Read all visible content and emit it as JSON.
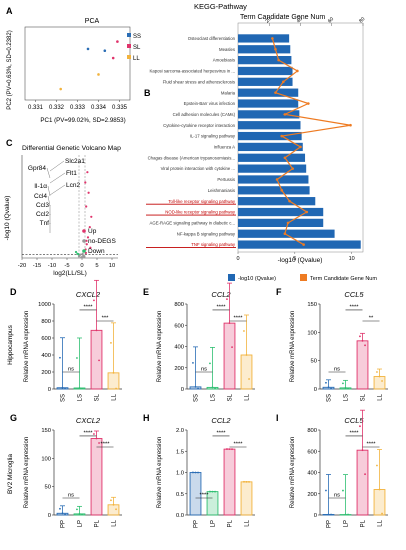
{
  "colors": {
    "SS": "#2a6db5",
    "SL": "#e0336b",
    "LL": "#f2b33d",
    "LS": "#2fbf71",
    "PP": "#2a6db5",
    "LP": "#2fbf71",
    "PL": "#e0336b",
    "kegg_bar": "#2067b3",
    "kegg_line": "#ee7b22",
    "highlight": "#c00000",
    "up": "#e0336b",
    "nodegs": "#999999",
    "down": "#2fbf71"
  },
  "panels": {
    "A": {
      "letter": "A",
      "title": "PCA",
      "xlabel": "PC1 (PV=99.02%, SD=2.9853)",
      "ylabel": "PC2 (PV=0.63%, SD=0.2382)",
      "xticks": [
        "0.331",
        "0.332",
        "0.333",
        "0.334",
        "0.335"
      ],
      "legend": [
        "SS",
        "SL",
        "LL"
      ]
    },
    "B": {
      "letter": "B",
      "title": "KEGG-Pathway",
      "top_axis_title": "Term Candidate Gene Num",
      "top_ticks": [
        "20",
        "40",
        "60",
        "80"
      ],
      "bottom_ticks": [
        "0",
        "5",
        "10"
      ],
      "xlabel": "-log10 (Qvalue)",
      "legend_bar": "-log10 (Qvalue)",
      "legend_line": "Term Candidate Gene Num"
    },
    "C": {
      "letter": "C",
      "title": "Differential Genetic Volcano Map",
      "xlabel": "log2(LL/SL)",
      "ylabel": "-log10 (Qvalue)",
      "xticks": [
        "-20",
        "-15",
        "-10",
        "-5",
        "0",
        "5",
        "10"
      ],
      "genes": [
        "Gpr84",
        "Slc2a1",
        "Flt1",
        "Lcn2",
        "Il-1α",
        "Ccl4",
        "Ccl3",
        "Ccl2",
        "Tnf"
      ],
      "legend": [
        "Up",
        "no-DEGS",
        "Down"
      ]
    },
    "hippo_row_label": "Hippocampus",
    "bv2_row_label": "BV2 Microglia",
    "ylabel_expr": "Relative mRNA expression"
  },
  "chart_data": [
    {
      "type": "scatter",
      "panel": "A",
      "series": [
        {
          "name": "SS",
          "x": [
            0.3335,
            0.3343
          ],
          "y": [
            0.08,
            0.07
          ]
        },
        {
          "name": "SL",
          "x": [
            0.3347,
            0.3349
          ],
          "y": [
            0.03,
            0.12
          ]
        },
        {
          "name": "LL",
          "x": [
            0.3322,
            0.334
          ],
          "y": [
            -0.14,
            -0.06
          ]
        }
      ],
      "xlim": [
        0.3305,
        0.3355
      ],
      "ylim": [
        -0.2,
        0.2
      ]
    },
    {
      "type": "bar",
      "panel": "B",
      "orientation": "horizontal",
      "categories": [
        "Osteoclast differentiation",
        "Measles",
        "Amoebiasis",
        "Kaposi sarcoma-associated herpesvirus in ...",
        "Fluid shear stress and atherosclerosis",
        "Malaria",
        "Epstein-Barr virus infection",
        "Cell adhesion molecules (CAMs)",
        "Cytokine-cytokine receptor interaction",
        "IL-17 signaling pathway",
        "Influenza A",
        "Chagas disease (American trypanosomiasis...",
        "Viral protein interaction with cytokine ...",
        "Pertussis",
        "Leishmaniasis",
        "Toll-like receptor signaling pathway",
        "NOD-like receptor signaling pathway",
        "AGE-RAGE signaling pathway in diabetic c...",
        "NF-kappa B signaling pathway",
        "TNF signaling pathway"
      ],
      "values": [
        4.5,
        4.6,
        4.7,
        4.8,
        4.8,
        5.3,
        5.3,
        5.4,
        5.5,
        5.6,
        5.7,
        5.9,
        6.0,
        6.2,
        6.3,
        6.8,
        7.5,
        7.5,
        8.5,
        10.8
      ],
      "gene_num": [
        22,
        24,
        26,
        38,
        29,
        24,
        45,
        30,
        72,
        28,
        40,
        30,
        35,
        25,
        28,
        33,
        44,
        32,
        30,
        42
      ],
      "highlighted": [
        "Toll-like receptor signaling pathway",
        "NOD-like receptor signaling pathway",
        "TNF signaling pathway"
      ],
      "xlim": [
        0,
        11
      ],
      "gene_lim": [
        0,
        80
      ]
    },
    {
      "type": "scatter",
      "panel": "C",
      "series": [
        {
          "name": "Up",
          "x": [
            1.2,
            1.6,
            2.0,
            2.6,
            3.1,
            1.4,
            2.2,
            1.1,
            1.8,
            2.8,
            1.5,
            1.3
          ],
          "y": [
            5,
            8,
            12,
            18,
            24,
            30,
            38,
            44,
            50,
            6,
            10,
            3
          ]
        },
        {
          "name": "no-DEGS",
          "x": [
            -1.0,
            -0.5,
            0,
            0.4,
            0.8,
            -0.3,
            0.2,
            0.6,
            -0.8
          ],
          "y": [
            1,
            2,
            0.5,
            1.5,
            1,
            0.3,
            2.5,
            0.8,
            1.6
          ]
        },
        {
          "name": "Down",
          "x": [
            -1.5,
            -2.0,
            -1.2
          ],
          "y": [
            2.5,
            3.5,
            2.2
          ]
        }
      ],
      "xlim": [
        -20,
        12
      ],
      "ylim": [
        0,
        60
      ]
    },
    {
      "type": "bar",
      "panel": "D",
      "title": "CXCL2",
      "categories": [
        "SS",
        "LS",
        "SL",
        "LL"
      ],
      "values": [
        15,
        12,
        690,
        190
      ],
      "ylim": [
        0,
        1000
      ],
      "yticks": [
        0,
        200,
        400,
        600,
        800,
        1000
      ],
      "significance": [
        "ns",
        "****",
        "***"
      ]
    },
    {
      "type": "bar",
      "panel": "E",
      "title": "CCL2",
      "categories": [
        "SS",
        "LS",
        "SL",
        "LL"
      ],
      "values": [
        20,
        15,
        620,
        320
      ],
      "ylim": [
        0,
        800
      ],
      "yticks": [
        0,
        200,
        400,
        600,
        800
      ],
      "significance": [
        "ns",
        "****",
        "****"
      ]
    },
    {
      "type": "bar",
      "panel": "F",
      "title": "CCL5",
      "categories": [
        "SS",
        "LS",
        "SL",
        "LL"
      ],
      "values": [
        3,
        2,
        85,
        22
      ],
      "ylim": [
        0,
        150
      ],
      "yticks": [
        0,
        50,
        100,
        150
      ],
      "significance": [
        "ns",
        "****",
        "**"
      ]
    },
    {
      "type": "bar",
      "panel": "G",
      "title": "CXCL2",
      "categories": [
        "PP",
        "LP",
        "PL",
        "LL"
      ],
      "values": [
        3,
        2,
        135,
        18
      ],
      "ylim": [
        0,
        150
      ],
      "yticks": [
        0,
        50,
        100,
        150
      ],
      "significance": [
        "ns",
        "****",
        "****"
      ]
    },
    {
      "type": "bar",
      "panel": "H",
      "title": "CCL2",
      "categories": [
        "PP",
        "LP",
        "PL",
        "LL"
      ],
      "values": [
        1.0,
        0.55,
        1.55,
        0.78
      ],
      "ylim": [
        0,
        2.0
      ],
      "yticks": [
        0.0,
        0.5,
        1.0,
        1.5,
        2.0
      ],
      "significance": [
        "****",
        "****",
        "****"
      ]
    },
    {
      "type": "bar",
      "panel": "I",
      "title": "CCL5",
      "categories": [
        "PP",
        "LP",
        "PL",
        "LL"
      ],
      "values": [
        5,
        4,
        610,
        240
      ],
      "ylim": [
        0,
        800
      ],
      "yticks": [
        0,
        200,
        400,
        600,
        800
      ],
      "significance": [
        "ns",
        "****",
        "****"
      ]
    }
  ]
}
